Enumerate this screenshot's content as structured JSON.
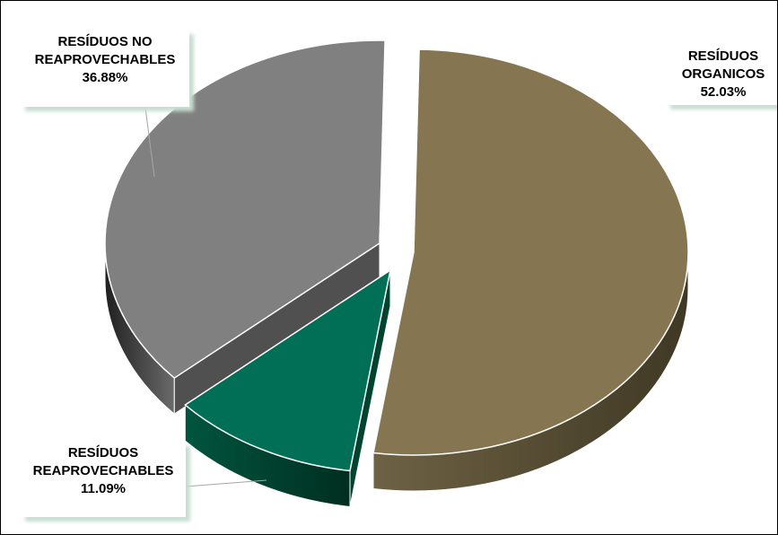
{
  "chart_data": {
    "type": "pie",
    "title": "",
    "slices": [
      {
        "name": "RESÍDUOS ORGANICOS",
        "value": 52.03,
        "percent_label": "52.03%",
        "color": "#857550",
        "side_color": "#5b5035"
      },
      {
        "name": "RESÍDUOS REAPROVECHABLES",
        "value": 11.09,
        "percent_label": "11.09%",
        "color": "#006f55",
        "side_color": "#00432f"
      },
      {
        "name": "RESÍDUOS NO REAPROVECHABLES",
        "value": 36.88,
        "percent_label": "36.88%",
        "color": "#808080",
        "side_color": "#505050"
      }
    ],
    "labels": {
      "organicos": {
        "line1": "RESÍDUOS",
        "line2": "ORGANICOS",
        "line3": "52.03%"
      },
      "reaprovechables": {
        "line1": "RESÍDUOS",
        "line2": "REAPROVECHABLES",
        "line3": "11.09%"
      },
      "no_reaprovechables": {
        "line1": "RESÍDUOS NO",
        "line2": "REAPROVECHABLES",
        "line3": "36.88%"
      }
    },
    "style": "3d-exploded",
    "legend": "none"
  }
}
